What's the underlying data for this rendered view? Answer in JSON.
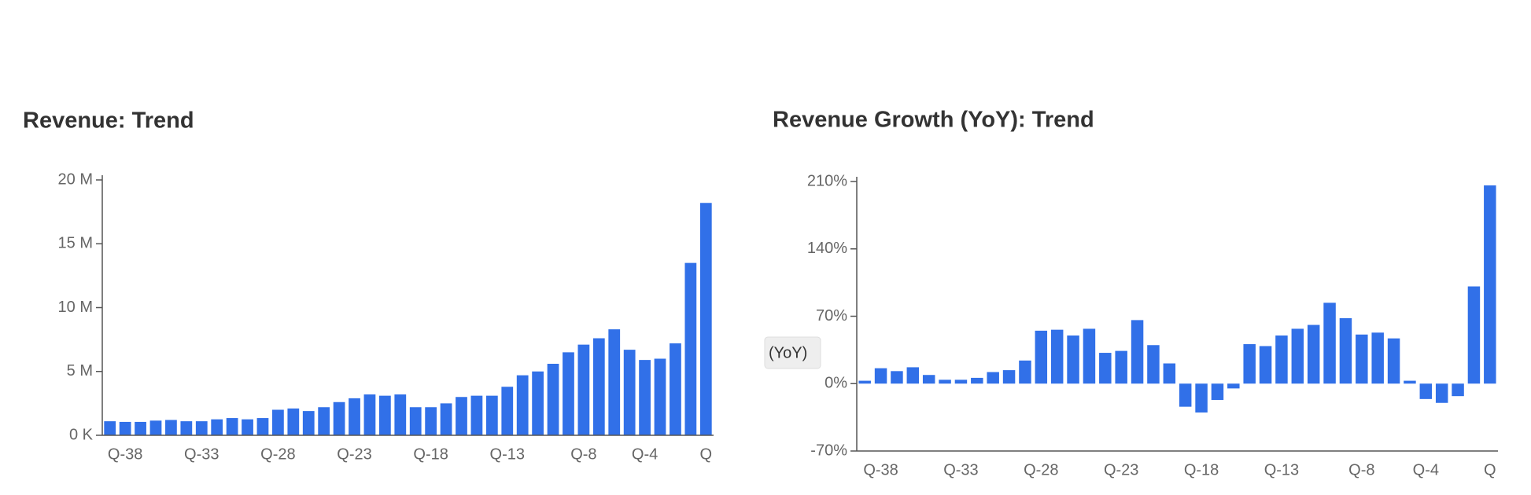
{
  "chart_data": [
    {
      "type": "bar",
      "title": "Revenue: Trend",
      "color": "#3170e8",
      "categories": [
        null,
        "Q-38",
        null,
        null,
        null,
        null,
        "Q-33",
        null,
        null,
        null,
        null,
        "Q-28",
        null,
        null,
        null,
        null,
        "Q-23",
        null,
        null,
        null,
        null,
        "Q-18",
        null,
        null,
        null,
        null,
        "Q-13",
        null,
        null,
        null,
        null,
        "Q-8",
        null,
        null,
        null,
        "Q-4",
        null,
        null,
        null,
        "Q"
      ],
      "values": [
        1.1,
        1.05,
        1.05,
        1.15,
        1.2,
        1.1,
        1.1,
        1.25,
        1.35,
        1.25,
        1.35,
        2.0,
        2.1,
        1.9,
        2.2,
        2.6,
        2.9,
        3.2,
        3.1,
        3.2,
        2.2,
        2.2,
        2.5,
        3.0,
        3.1,
        3.1,
        3.8,
        4.7,
        5.0,
        5.6,
        6.5,
        7.1,
        7.6,
        8.3,
        6.7,
        5.9,
        6.0,
        7.2,
        13.5,
        18.2
      ],
      "ylim": [
        0,
        20
      ],
      "yticks": [
        {
          "value": 0,
          "label": "0 K"
        },
        {
          "value": 5,
          "label": "5 M"
        },
        {
          "value": 10,
          "label": "10 M"
        },
        {
          "value": 15,
          "label": "15 M"
        },
        {
          "value": 20,
          "label": "20 M"
        }
      ],
      "grid": false
    },
    {
      "type": "bar",
      "title": "Revenue Growth (YoY): Trend",
      "color": "#3170e8",
      "categories": [
        null,
        "Q-38",
        null,
        null,
        null,
        null,
        "Q-33",
        null,
        null,
        null,
        null,
        "Q-28",
        null,
        null,
        null,
        null,
        "Q-23",
        null,
        null,
        null,
        null,
        "Q-18",
        null,
        null,
        null,
        null,
        "Q-13",
        null,
        null,
        null,
        null,
        "Q-8",
        null,
        null,
        null,
        "Q-4",
        null,
        null,
        null,
        "Q"
      ],
      "values": [
        3,
        16,
        13,
        17,
        9,
        4,
        4,
        6,
        12,
        14,
        24,
        55,
        56,
        50,
        57,
        32,
        34,
        66,
        40,
        21,
        -24,
        -30,
        -17,
        -5,
        41,
        39,
        50,
        57,
        61,
        84,
        68,
        51,
        53,
        47,
        3,
        -16,
        -20,
        -13,
        101,
        206
      ],
      "ylim": [
        -70,
        210
      ],
      "yticks": [
        {
          "value": -70,
          "label": "-70%"
        },
        {
          "value": 0,
          "label": "0%"
        },
        {
          "value": 70,
          "label": "70%"
        },
        {
          "value": 140,
          "label": "140%"
        },
        {
          "value": 210,
          "label": "210%"
        }
      ],
      "grid": false
    }
  ],
  "tooltip": "(YoY)"
}
